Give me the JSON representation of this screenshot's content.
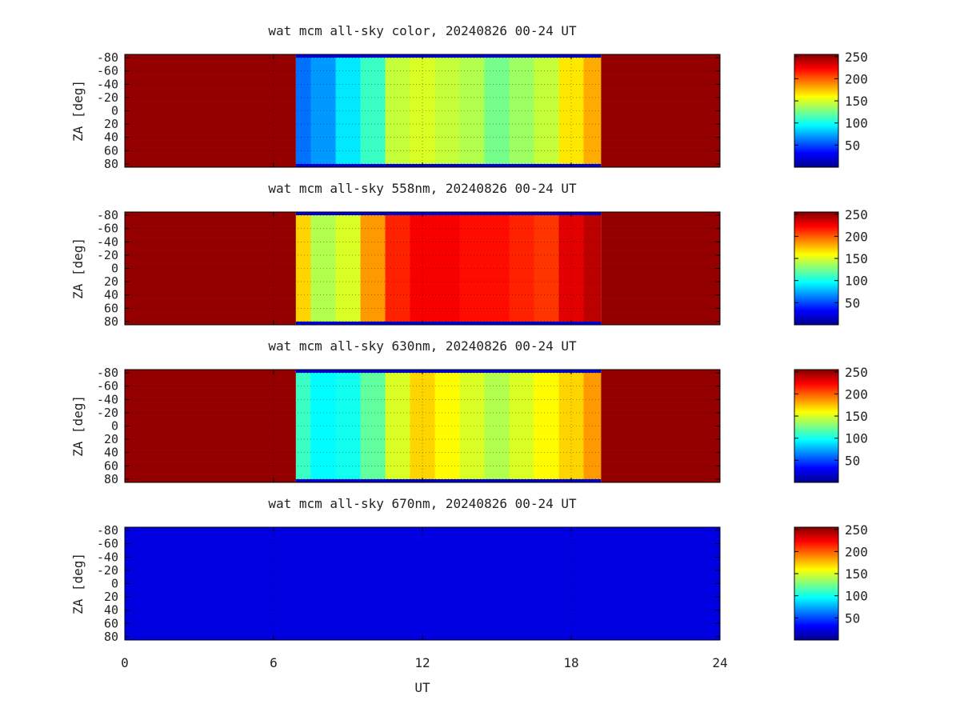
{
  "chart_data": [
    {
      "type": "heatmap",
      "title": "wat mcm all-sky color, 20240826 00-24 UT",
      "ylabel": "ZA [deg]",
      "yticks": [
        "-80",
        "-60",
        "-40",
        "-20",
        "0",
        "20",
        "40",
        "60",
        "80"
      ],
      "ylim": [
        -85,
        85
      ],
      "xlim": [
        0,
        24
      ],
      "colorbar_ticks": [
        "50",
        "100",
        "150",
        "200",
        "250"
      ],
      "colorbar_range": [
        0,
        255
      ],
      "day_start_ut": 6.9,
      "day_end_ut": 19.2,
      "night_value": 250,
      "day_profile": [
        {
          "ut": 7.0,
          "value": 60
        },
        {
          "ut": 8.0,
          "value": 70
        },
        {
          "ut": 9.0,
          "value": 90
        },
        {
          "ut": 10.0,
          "value": 110
        },
        {
          "ut": 11.0,
          "value": 145
        },
        {
          "ut": 12.0,
          "value": 150
        },
        {
          "ut": 13.0,
          "value": 145
        },
        {
          "ut": 14.0,
          "value": 140
        },
        {
          "ut": 15.0,
          "value": 125
        },
        {
          "ut": 16.0,
          "value": 135
        },
        {
          "ut": 17.0,
          "value": 145
        },
        {
          "ut": 18.0,
          "value": 165
        },
        {
          "ut": 19.0,
          "value": 180
        }
      ]
    },
    {
      "type": "heatmap",
      "title": "wat mcm all-sky 558nm, 20240826 00-24 UT",
      "ylabel": "ZA [deg]",
      "yticks": [
        "-80",
        "-60",
        "-40",
        "-20",
        "0",
        "20",
        "40",
        "60",
        "80"
      ],
      "ylim": [
        -85,
        85
      ],
      "xlim": [
        0,
        24
      ],
      "colorbar_ticks": [
        "50",
        "100",
        "150",
        "200",
        "250"
      ],
      "colorbar_range": [
        0,
        255
      ],
      "day_start_ut": 6.9,
      "day_end_ut": 19.2,
      "night_value": 250,
      "day_profile": [
        {
          "ut": 7.0,
          "value": 170
        },
        {
          "ut": 8.0,
          "value": 140
        },
        {
          "ut": 9.0,
          "value": 150
        },
        {
          "ut": 10.0,
          "value": 185
        },
        {
          "ut": 11.0,
          "value": 215
        },
        {
          "ut": 12.0,
          "value": 225
        },
        {
          "ut": 13.0,
          "value": 225
        },
        {
          "ut": 14.0,
          "value": 220
        },
        {
          "ut": 15.0,
          "value": 220
        },
        {
          "ut": 16.0,
          "value": 215
        },
        {
          "ut": 17.0,
          "value": 210
        },
        {
          "ut": 18.0,
          "value": 230
        },
        {
          "ut": 19.0,
          "value": 240
        }
      ]
    },
    {
      "type": "heatmap",
      "title": "wat mcm all-sky 630nm, 20240826 00-24 UT",
      "ylabel": "ZA [deg]",
      "yticks": [
        "-80",
        "-60",
        "-40",
        "-20",
        "0",
        "20",
        "40",
        "60",
        "80"
      ],
      "ylim": [
        -85,
        85
      ],
      "xlim": [
        0,
        24
      ],
      "colorbar_ticks": [
        "50",
        "100",
        "150",
        "200",
        "250"
      ],
      "colorbar_range": [
        0,
        255
      ],
      "day_start_ut": 6.9,
      "day_end_ut": 19.2,
      "night_value": 250,
      "day_profile": [
        {
          "ut": 7.0,
          "value": 110
        },
        {
          "ut": 8.0,
          "value": 95
        },
        {
          "ut": 9.0,
          "value": 100
        },
        {
          "ut": 10.0,
          "value": 120
        },
        {
          "ut": 11.0,
          "value": 150
        },
        {
          "ut": 12.0,
          "value": 170
        },
        {
          "ut": 13.0,
          "value": 160
        },
        {
          "ut": 14.0,
          "value": 150
        },
        {
          "ut": 15.0,
          "value": 140
        },
        {
          "ut": 16.0,
          "value": 150
        },
        {
          "ut": 17.0,
          "value": 160
        },
        {
          "ut": 18.0,
          "value": 170
        },
        {
          "ut": 19.0,
          "value": 185
        }
      ]
    },
    {
      "type": "heatmap",
      "title": "wat mcm all-sky 670nm, 20240826 00-24 UT",
      "ylabel": "ZA [deg]",
      "yticks": [
        "-80",
        "-60",
        "-40",
        "-20",
        "0",
        "20",
        "40",
        "60",
        "80"
      ],
      "ylim": [
        -85,
        85
      ],
      "xlim": [
        0,
        24
      ],
      "colorbar_ticks": [
        "50",
        "100",
        "150",
        "200",
        "250"
      ],
      "colorbar_range": [
        0,
        255
      ],
      "uniform_value": 25
    }
  ],
  "shared_x": {
    "xlabel": "UT",
    "xticks": [
      {
        "value": 0,
        "label": "0"
      },
      {
        "value": 6,
        "label": "6"
      },
      {
        "value": 12,
        "label": "12"
      },
      {
        "value": 18,
        "label": "18"
      },
      {
        "value": 24,
        "label": "24"
      }
    ]
  }
}
